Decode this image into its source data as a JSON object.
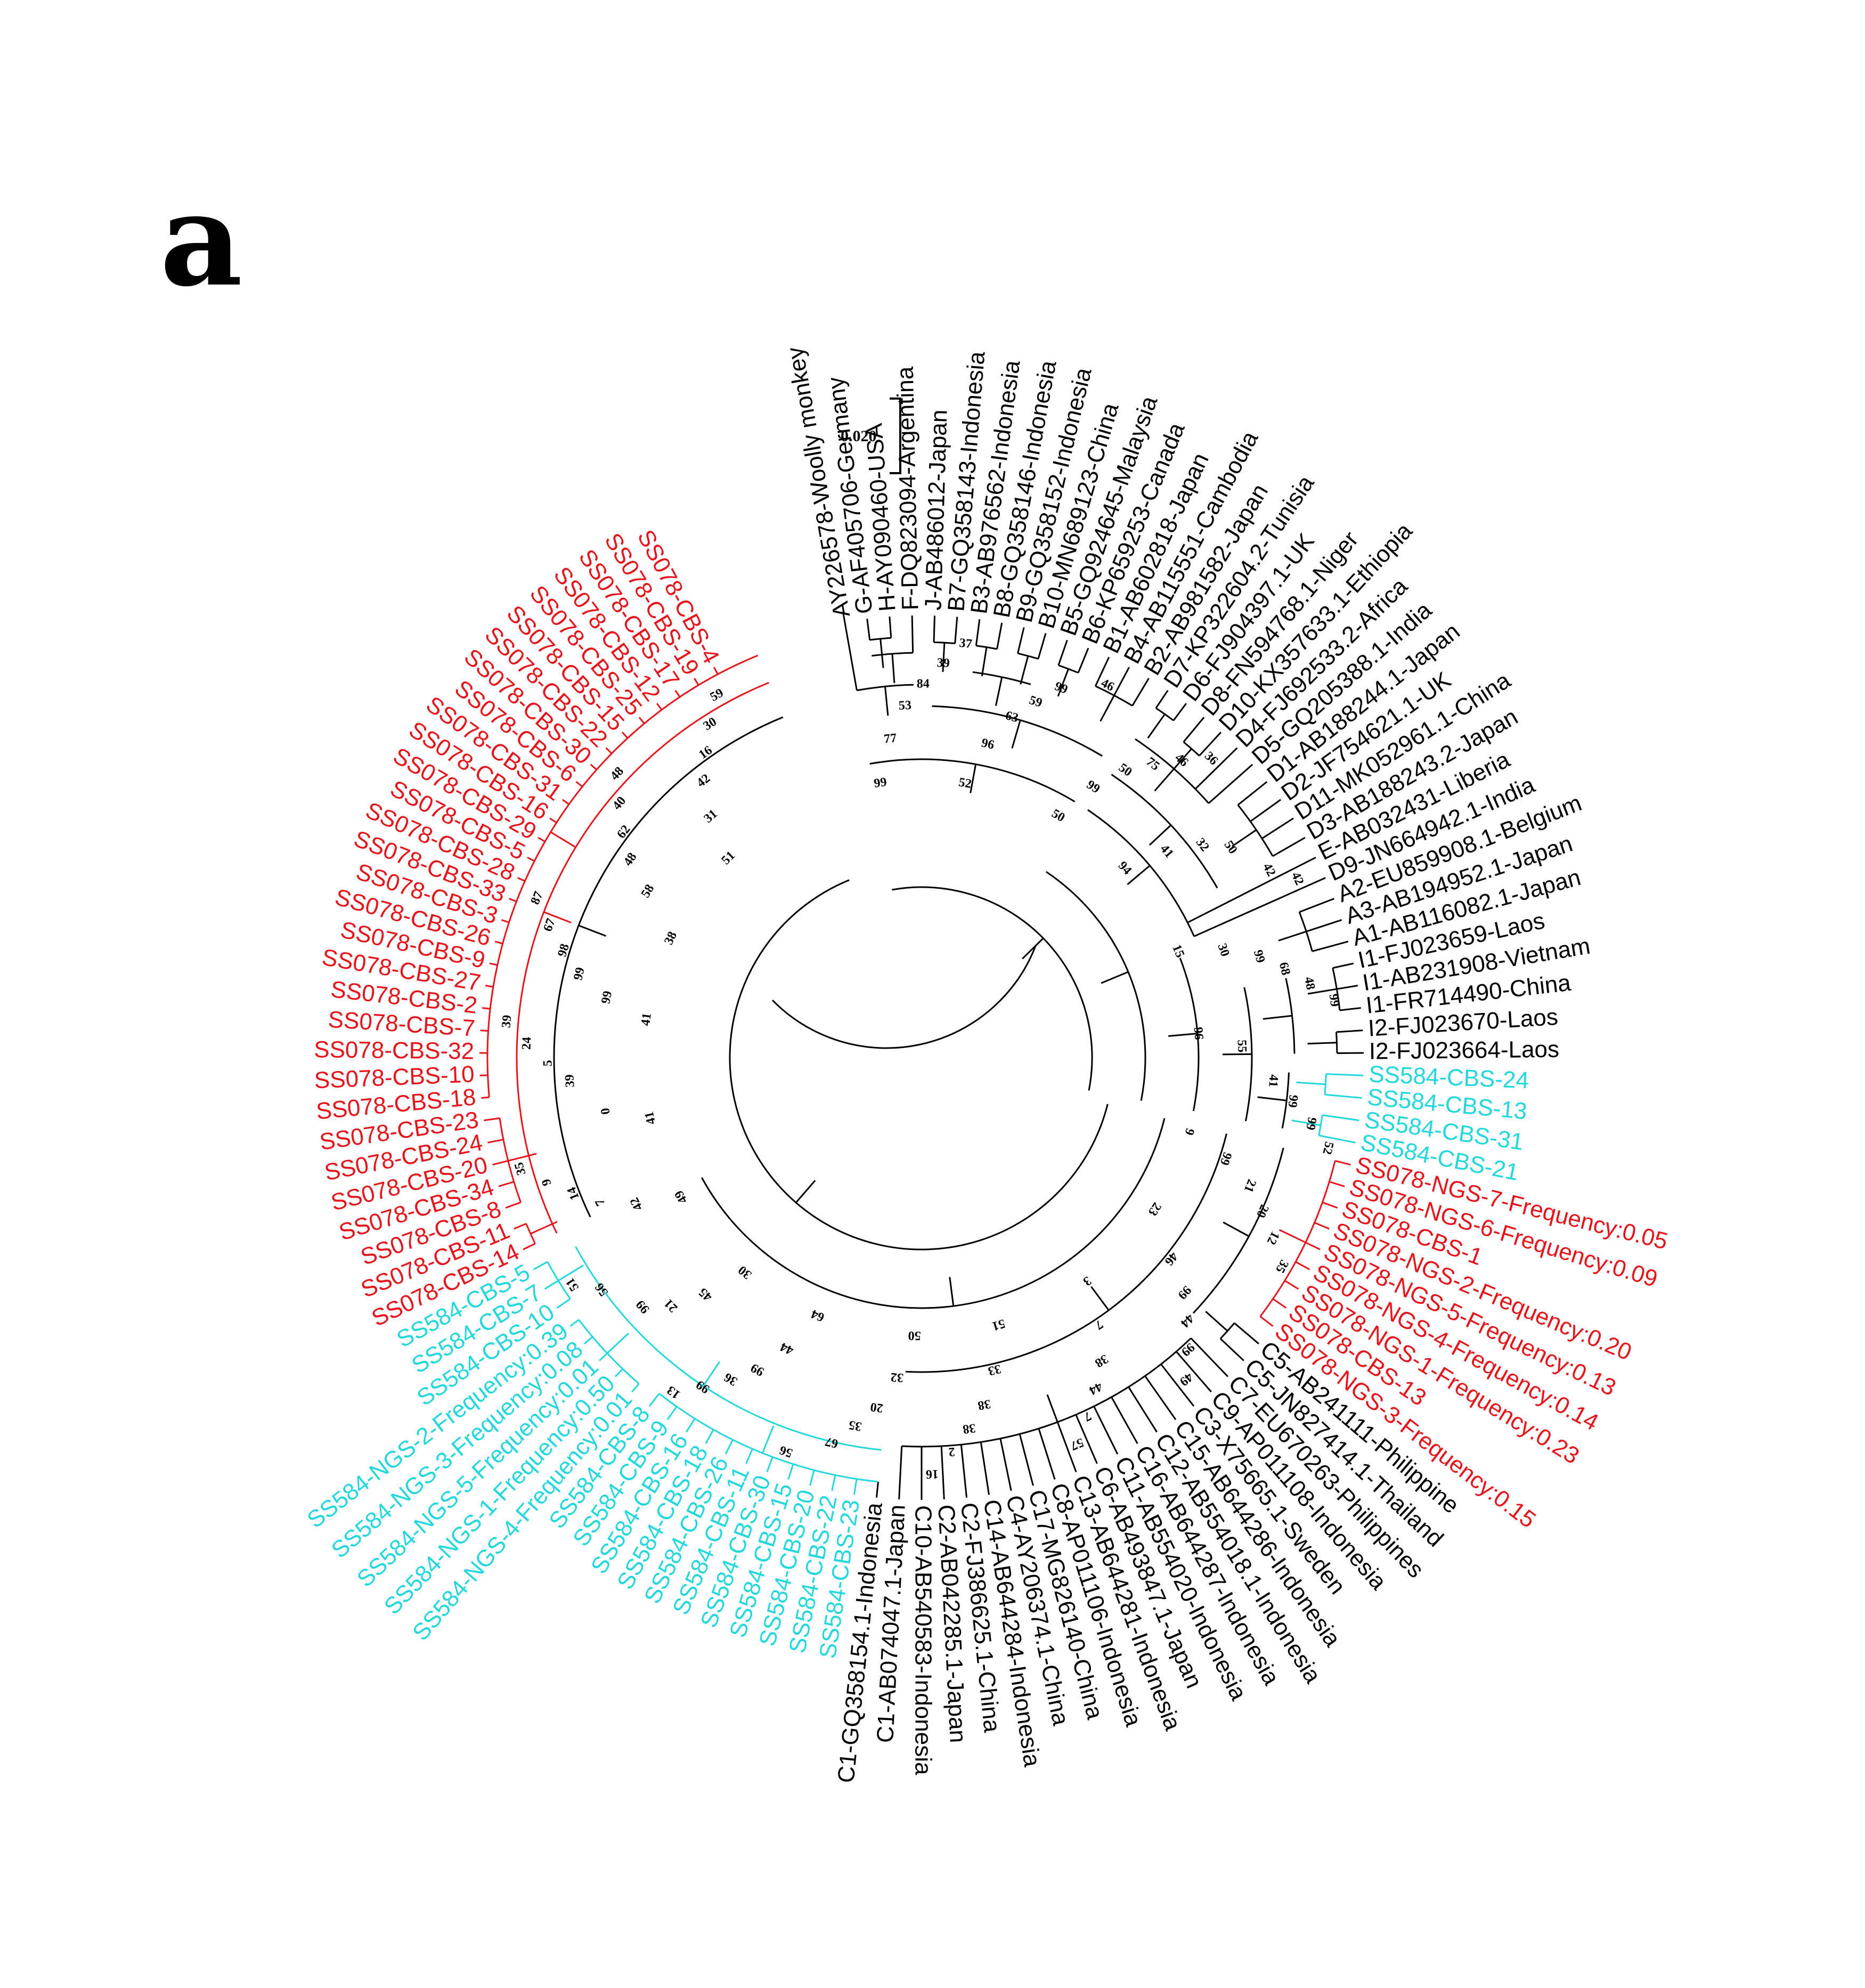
{
  "figure": {
    "panel_label": "a",
    "scale_label": "0.020",
    "colors": {
      "default": "#000000",
      "SS078": "#e8141b",
      "SS584": "#23d8dc"
    }
  },
  "leaves": [
    {
      "label": "AY226578-Woolly monkey",
      "group": "default"
    },
    {
      "label": "G-AF405706-Germany",
      "group": "default"
    },
    {
      "label": "H-AY090460-USA",
      "group": "default"
    },
    {
      "label": "F-DQ823094-Argentina",
      "group": "default"
    },
    {
      "label": "J-AB486012-Japan",
      "group": "default"
    },
    {
      "label": "B7-GQ358143-Indonesia",
      "group": "default"
    },
    {
      "label": "B3-AB976562-Indonesia",
      "group": "default"
    },
    {
      "label": "B8-GQ358146-Indonesia",
      "group": "default"
    },
    {
      "label": "B9-GQ358152-Indonesia",
      "group": "default"
    },
    {
      "label": "B10-MN689123-China",
      "group": "default"
    },
    {
      "label": "B5-GQ924645-Malaysia",
      "group": "default"
    },
    {
      "label": "B6-KP659253-Canada",
      "group": "default"
    },
    {
      "label": "B1-AB602818-Japan",
      "group": "default"
    },
    {
      "label": "B4-AB115551-Cambodia",
      "group": "default"
    },
    {
      "label": "B2-AB981582-Japan",
      "group": "default"
    },
    {
      "label": "D7-KP322604.2-Tunisia",
      "group": "default"
    },
    {
      "label": "D6-FJ904397.1-UK",
      "group": "default"
    },
    {
      "label": "D8-FN594768.1-Niger",
      "group": "default"
    },
    {
      "label": "D10-KX357633.1-Ethiopia",
      "group": "default"
    },
    {
      "label": "D4-FJ692533.2-Africa",
      "group": "default"
    },
    {
      "label": "D5-GQ205388.1-India",
      "group": "default"
    },
    {
      "label": "D1-AB188244.1-Japan",
      "group": "default"
    },
    {
      "label": "D2-JF754621.1-UK",
      "group": "default"
    },
    {
      "label": "D11-MK052961.1-China",
      "group": "default"
    },
    {
      "label": "D3-AB188243.2-Japan",
      "group": "default"
    },
    {
      "label": "E-AB032431-Liberia",
      "group": "default"
    },
    {
      "label": "D9-JN664942.1-India",
      "group": "default"
    },
    {
      "label": "A2-EU859908.1-Belgium",
      "group": "default"
    },
    {
      "label": "A3-AB194952.1-Japan",
      "group": "default"
    },
    {
      "label": "A1-AB116082.1-Japan",
      "group": "default"
    },
    {
      "label": "I1-FJ023659-Laos",
      "group": "default"
    },
    {
      "label": "I1-AB231908-Vietnam",
      "group": "default"
    },
    {
      "label": "I1-FR714490-China",
      "group": "default"
    },
    {
      "label": "I2-FJ023670-Laos",
      "group": "default"
    },
    {
      "label": "I2-FJ023664-Laos",
      "group": "default"
    },
    {
      "label": "SS584-CBS-24",
      "group": "SS584"
    },
    {
      "label": "SS584-CBS-13",
      "group": "SS584"
    },
    {
      "label": "SS584-CBS-31",
      "group": "SS584"
    },
    {
      "label": "SS584-CBS-21",
      "group": "SS584"
    },
    {
      "label": "SS078-NGS-7-Frequency:0.05",
      "group": "SS078"
    },
    {
      "label": "SS078-NGS-6-Frequency:0.09",
      "group": "SS078"
    },
    {
      "label": "SS078-CBS-1",
      "group": "SS078"
    },
    {
      "label": "SS078-NGS-2-Frequency:0.20",
      "group": "SS078"
    },
    {
      "label": "SS078-NGS-5-Frequency:0.13",
      "group": "SS078"
    },
    {
      "label": "SS078-NGS-4-Frequency:0.14",
      "group": "SS078"
    },
    {
      "label": "SS078-NGS-1-Frequency:0.23",
      "group": "SS078"
    },
    {
      "label": "SS078-CBS-13",
      "group": "SS078"
    },
    {
      "label": "SS078-NGS-3-Frequency:0.15",
      "group": "SS078"
    },
    {
      "label": "C5-AB241111-Philippine",
      "group": "default"
    },
    {
      "label": "C5-JN827414.1-Thailand",
      "group": "default"
    },
    {
      "label": "C7-EU670263-Philippines",
      "group": "default"
    },
    {
      "label": "C9-AP011108-Indonesia",
      "group": "default"
    },
    {
      "label": "C3-X75665.1-Sweden",
      "group": "default"
    },
    {
      "label": "C15-AB644286-Indonesia",
      "group": "default"
    },
    {
      "label": "C12-AB554018.1-Indonesia",
      "group": "default"
    },
    {
      "label": "C16-AB644287-Indonesia",
      "group": "default"
    },
    {
      "label": "C11-AB554020-Indonesia",
      "group": "default"
    },
    {
      "label": "C6-AB493847.1-Japan",
      "group": "default"
    },
    {
      "label": "C13-AB644281-Indonesia",
      "group": "default"
    },
    {
      "label": "C8-AP011106-Indonesia",
      "group": "default"
    },
    {
      "label": "C17-MG826140-China",
      "group": "default"
    },
    {
      "label": "C4-AY206374.1-China",
      "group": "default"
    },
    {
      "label": "C14-AB644284-Indonesia",
      "group": "default"
    },
    {
      "label": "C2-FJ386625.1-China",
      "group": "default"
    },
    {
      "label": "C2-AB042285.1-Japan",
      "group": "default"
    },
    {
      "label": "C10-AB540583-Indonesia",
      "group": "default"
    },
    {
      "label": "C1-AB074047.1-Japan",
      "group": "default"
    },
    {
      "label": "C1-GQ358154.1-Indonesia",
      "group": "default"
    },
    {
      "label": "SS584-CBS-23",
      "group": "SS584"
    },
    {
      "label": "SS584-CBS-22",
      "group": "SS584"
    },
    {
      "label": "SS584-CBS-20",
      "group": "SS584"
    },
    {
      "label": "SS584-CBS-15",
      "group": "SS584"
    },
    {
      "label": "SS584-CBS-30",
      "group": "SS584"
    },
    {
      "label": "SS584-CBS-11",
      "group": "SS584"
    },
    {
      "label": "SS584-CBS-26",
      "group": "SS584"
    },
    {
      "label": "SS584-CBS-18",
      "group": "SS584"
    },
    {
      "label": "SS584-CBS-16",
      "group": "SS584"
    },
    {
      "label": "SS584-CBS-9",
      "group": "SS584"
    },
    {
      "label": "SS584-CBS-8",
      "group": "SS584"
    },
    {
      "label": "SS584-NGS-4-Frequency:0.01",
      "group": "SS584"
    },
    {
      "label": "SS584-NGS-1-Frequency:0.50",
      "group": "SS584"
    },
    {
      "label": "SS584-NGS-5-Frequency:0.01",
      "group": "SS584"
    },
    {
      "label": "SS584-NGS-3-Frequency:0.08",
      "group": "SS584"
    },
    {
      "label": "SS584-NGS-2-Frequency:0.39",
      "group": "SS584"
    },
    {
      "label": "SS584-CBS-10",
      "group": "SS584"
    },
    {
      "label": "SS584-CBS-7",
      "group": "SS584"
    },
    {
      "label": "SS584-CBS-5",
      "group": "SS584"
    },
    {
      "label": "SS078-CBS-14",
      "group": "SS078"
    },
    {
      "label": "SS078-CBS-11",
      "group": "SS078"
    },
    {
      "label": "SS078-CBS-8",
      "group": "SS078"
    },
    {
      "label": "SS078-CBS-34",
      "group": "SS078"
    },
    {
      "label": "SS078-CBS-20",
      "group": "SS078"
    },
    {
      "label": "SS078-CBS-24",
      "group": "SS078"
    },
    {
      "label": "SS078-CBS-23",
      "group": "SS078"
    },
    {
      "label": "SS078-CBS-18",
      "group": "SS078"
    },
    {
      "label": "SS078-CBS-10",
      "group": "SS078"
    },
    {
      "label": "SS078-CBS-32",
      "group": "SS078"
    },
    {
      "label": "SS078-CBS-7",
      "group": "SS078"
    },
    {
      "label": "SS078-CBS-2",
      "group": "SS078"
    },
    {
      "label": "SS078-CBS-27",
      "group": "SS078"
    },
    {
      "label": "SS078-CBS-9",
      "group": "SS078"
    },
    {
      "label": "SS078-CBS-26",
      "group": "SS078"
    },
    {
      "label": "SS078-CBS-3",
      "group": "SS078"
    },
    {
      "label": "SS078-CBS-33",
      "group": "SS078"
    },
    {
      "label": "SS078-CBS-28",
      "group": "SS078"
    },
    {
      "label": "SS078-CBS-5",
      "group": "SS078"
    },
    {
      "label": "SS078-CBS-29",
      "group": "SS078"
    },
    {
      "label": "SS078-CBS-16",
      "group": "SS078"
    },
    {
      "label": "SS078-CBS-31",
      "group": "SS078"
    },
    {
      "label": "SS078-CBS-6",
      "group": "SS078"
    },
    {
      "label": "SS078-CBS-30",
      "group": "SS078"
    },
    {
      "label": "SS078-CBS-22",
      "group": "SS078"
    },
    {
      "label": "SS078-CBS-15",
      "group": "SS078"
    },
    {
      "label": "SS078-CBS-25",
      "group": "SS078"
    },
    {
      "label": "SS078-CBS-12",
      "group": "SS078"
    },
    {
      "label": "SS078-CBS-17",
      "group": "SS078"
    },
    {
      "label": "SS078-CBS-19",
      "group": "SS078"
    },
    {
      "label": "SS078-CBS-4",
      "group": "SS078"
    }
  ],
  "bootstrap_values": [
    "99",
    "77",
    "53",
    "84",
    "39",
    "37",
    "52",
    "96",
    "63",
    "59",
    "99",
    "46",
    "50",
    "99",
    "50",
    "75",
    "46",
    "36",
    "94",
    "41",
    "32",
    "50",
    "42",
    "42",
    "15",
    "30",
    "99",
    "68",
    "48",
    "99",
    "96",
    "55",
    "41",
    "99",
    "99",
    "52",
    "9",
    "99",
    "21",
    "20",
    "12",
    "35",
    "23",
    "46",
    "99",
    "44",
    "99",
    "49",
    "3",
    "7",
    "38",
    "44",
    "7",
    "57",
    "51",
    "33",
    "38",
    "38",
    "2",
    "16",
    "50",
    "32",
    "20",
    "35",
    "67",
    "56",
    "64",
    "44",
    "99",
    "36",
    "99",
    "13",
    "30",
    "45",
    "21",
    "99",
    "56",
    "51",
    "49",
    "42",
    "7",
    "14",
    "9",
    "35",
    "41",
    "0",
    "39",
    "5",
    "24",
    "39",
    "41",
    "99",
    "99",
    "98",
    "67",
    "87",
    "38",
    "58",
    "48",
    "62",
    "40",
    "48",
    "51",
    "31",
    "42",
    "16",
    "30",
    "59"
  ]
}
